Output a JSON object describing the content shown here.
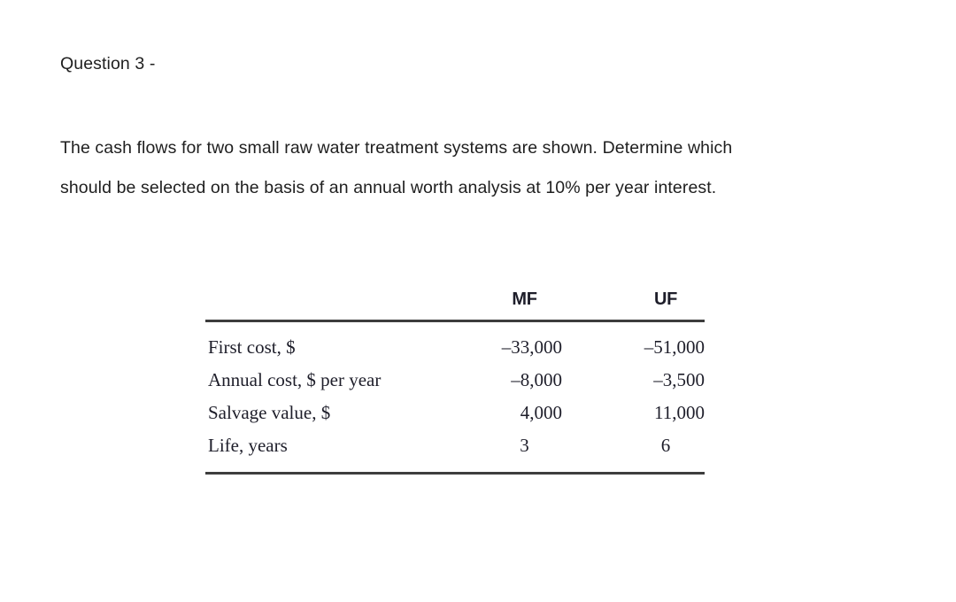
{
  "question": {
    "title": "Question 3 -"
  },
  "prompt": {
    "lines": [
      "The cash flows for two small raw water treatment systems are shown. Determine which",
      "should be selected on the basis of an annual worth analysis at 10% per year interest."
    ]
  },
  "table": {
    "columns": [
      "",
      "MF",
      "UF"
    ],
    "rows": [
      {
        "label": "First cost, $",
        "mf": "–33,000",
        "uf": "–51,000"
      },
      {
        "label": "Annual cost, $ per year",
        "mf": "–8,000",
        "uf": "–3,500"
      },
      {
        "label": "Salvage value, $",
        "mf": "4,000",
        "uf": "11,000"
      },
      {
        "label": "Life, years",
        "mf": "3",
        "uf": "6"
      }
    ]
  },
  "colors": {
    "page_bg": "#ffffff",
    "text": "#1f1f1f",
    "table_text": "#1e1e2a",
    "rule": "#3d3d3d"
  }
}
